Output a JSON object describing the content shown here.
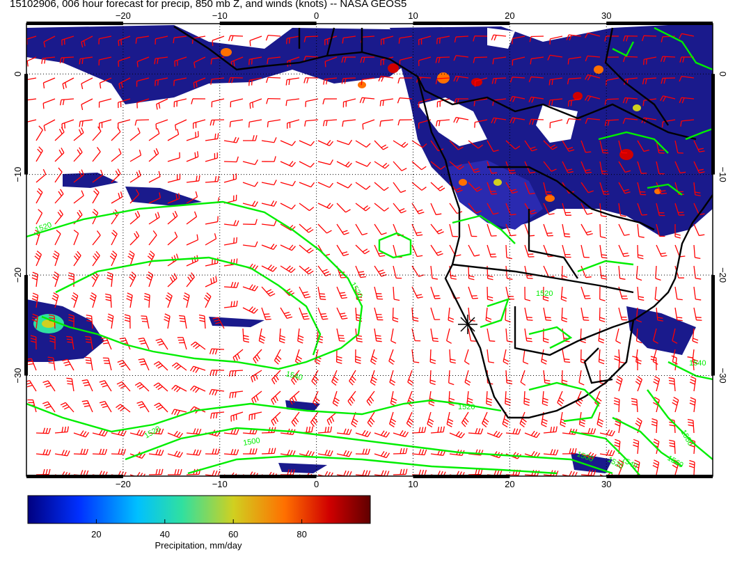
{
  "title": "15102906, 006 hour forecast for precip, 850 mb Z, and winds (knots) -- NASA GEOS5",
  "map": {
    "lon_range": [
      -30,
      41
    ],
    "lat_range": [
      -40,
      5
    ],
    "lon_ticks": [
      "-20",
      "-10",
      "0",
      "10",
      "20",
      "30"
    ],
    "lat_ticks": [
      "0",
      "-10",
      "-20",
      "-30"
    ],
    "grid": "dotted",
    "colors": {
      "coastline": "#000000",
      "wind_barbs": "#ff0000",
      "height_contours": "#00ee00",
      "precip_low": "#1a1a8c"
    },
    "contour_labels": [
      "1520",
      "1520",
      "1540",
      "1520",
      "1520",
      "1500",
      "1520",
      "1540",
      "1560",
      "1580",
      "1540",
      "1500",
      "1520"
    ],
    "marker": {
      "lon": 15,
      "lat": -24,
      "symbol": "asterisk-icon"
    }
  },
  "colorbar": {
    "ticks": [
      "20",
      "40",
      "60",
      "80"
    ],
    "range": [
      0,
      100
    ],
    "label": "Precipitation, mm/day",
    "stops": [
      "#000080",
      "#0030ff",
      "#00c0ff",
      "#30e0a0",
      "#d0d020",
      "#ff7000",
      "#d00000",
      "#600000"
    ]
  }
}
